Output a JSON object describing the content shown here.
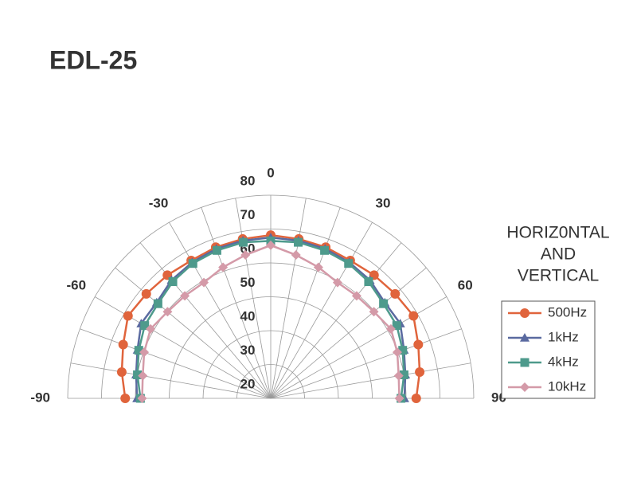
{
  "chart_data": {
    "type": "polar",
    "title": "EDL-25",
    "annotation": [
      "HORIZ0NTAL",
      "AND",
      "VERTICAL"
    ],
    "x": [
      -90,
      -80,
      -70,
      -60,
      -50,
      -40,
      -30,
      -20,
      -10,
      0,
      10,
      20,
      30,
      40,
      50,
      60,
      70,
      80,
      90
    ],
    "xlim": [
      -90,
      90
    ],
    "xticks": [
      -90,
      -60,
      -30,
      0,
      30,
      60,
      90
    ],
    "ylim": [
      20,
      80
    ],
    "yticks": [
      20,
      30,
      40,
      50,
      60,
      70,
      80
    ],
    "grid": true,
    "legend": "right",
    "series": [
      {
        "name": "500Hz",
        "color": "#e0643c",
        "marker": "circle",
        "values": [
          63,
          64.7,
          66.4,
          68.7,
          68,
          67.5,
          67,
          67.5,
          67.8,
          68.2,
          67.8,
          67.5,
          67,
          67.5,
          68,
          68.7,
          66.4,
          64.7,
          63
        ]
      },
      {
        "name": "1kHz",
        "color": "#5a6aa0",
        "marker": "triangle",
        "values": [
          59.5,
          60.4,
          61.9,
          64.2,
          64,
          65.6,
          66.4,
          67,
          67.3,
          67.5,
          67.3,
          67,
          66.4,
          65.6,
          64,
          64.2,
          61.9,
          60.4,
          59.5
        ]
      },
      {
        "name": "4kHz",
        "color": "#4e9a8c",
        "marker": "square",
        "values": [
          58.5,
          60,
          61.5,
          63,
          63.5,
          65,
          66,
          66.5,
          66.8,
          66.5,
          66.8,
          66.5,
          66,
          65,
          63.5,
          63,
          61.5,
          60,
          58.5
        ]
      },
      {
        "name": "10kHz",
        "color": "#d49aa8",
        "marker": "diamond",
        "values": [
          58,
          58.4,
          59.8,
          61,
          59.8,
          59.5,
          59.5,
          61.2,
          63,
          65.2,
          63,
          61.2,
          59.5,
          59.5,
          59.8,
          61,
          59.8,
          58.4,
          58
        ]
      }
    ]
  }
}
